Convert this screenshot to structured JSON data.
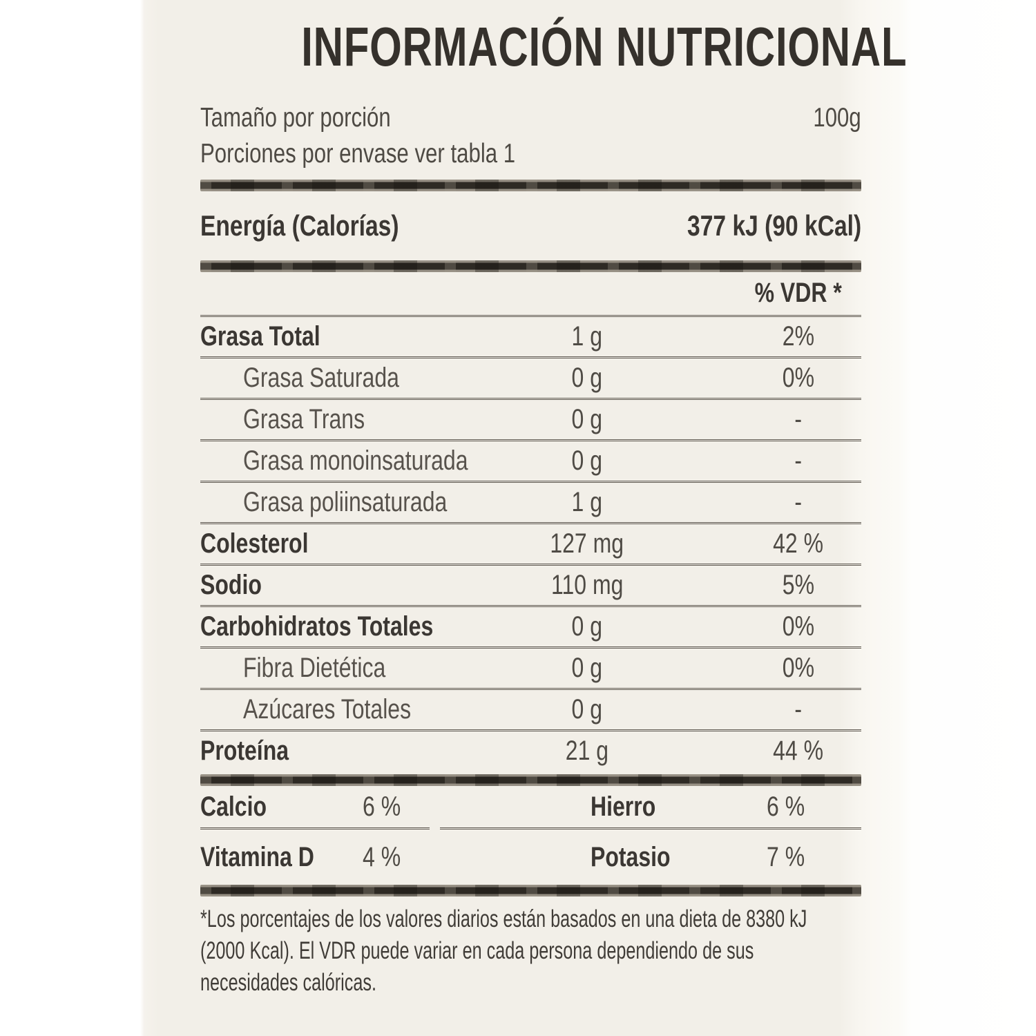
{
  "colors": {
    "label_background": "#f2efe8",
    "text_dark": "#3b3733",
    "text_mid": "#57524c",
    "bar": "#2e2a24",
    "separator": "#5d574f"
  },
  "label": {
    "title": "INFORMACIÓN NUTRICIONAL",
    "serving_size_label": "Tamaño por porción",
    "serving_size_value": "100g",
    "servings_per_container": "Porciones por envase ver tabla 1",
    "energy_label": "Energía (Calorías)",
    "energy_value": "377 kJ (90 kCal)",
    "vdr_header": "% VDR *",
    "rows": [
      {
        "name": "Grasa Total",
        "amount": "1 g",
        "vdr": "2%",
        "bold": true,
        "indent": false
      },
      {
        "name": "Grasa Saturada",
        "amount": "0 g",
        "vdr": "0%",
        "bold": false,
        "indent": true
      },
      {
        "name": "Grasa Trans",
        "amount": "0 g",
        "vdr": "-",
        "bold": false,
        "indent": true
      },
      {
        "name": "Grasa monoinsaturada",
        "amount": "0 g",
        "vdr": "-",
        "bold": false,
        "indent": true
      },
      {
        "name": "Grasa poliinsaturada",
        "amount": "1 g",
        "vdr": "-",
        "bold": false,
        "indent": true
      },
      {
        "name": "Colesterol",
        "amount": "127 mg",
        "vdr": "42 %",
        "bold": true,
        "indent": false
      },
      {
        "name": "Sodio",
        "amount": "110 mg",
        "vdr": "5%",
        "bold": true,
        "indent": false
      },
      {
        "name": "Carbohidratos Totales",
        "amount": "0 g",
        "vdr": "0%",
        "bold": true,
        "indent": false
      },
      {
        "name": "Fibra Dietética",
        "amount": "0 g",
        "vdr": "0%",
        "bold": false,
        "indent": true
      },
      {
        "name": "Azúcares Totales",
        "amount": "0 g",
        "vdr": "-",
        "bold": false,
        "indent": true
      },
      {
        "name": "Proteína",
        "amount": "21 g",
        "vdr": "44 %",
        "bold": true,
        "indent": false
      }
    ],
    "micronutrients": [
      {
        "name": "Calcio",
        "value": "6 %"
      },
      {
        "name": "Hierro",
        "value": "6 %"
      },
      {
        "name": "Vitamina D",
        "value": "4 %"
      },
      {
        "name": "Potasio",
        "value": "7 %"
      }
    ],
    "footnote_lines": [
      "*Los porcentajes de los valores diarios están basados en una dieta de 8380 kJ",
      "(2000 Kcal). El VDR puede variar en cada persona dependiendo de sus",
      "necesidades calóricas."
    ]
  }
}
